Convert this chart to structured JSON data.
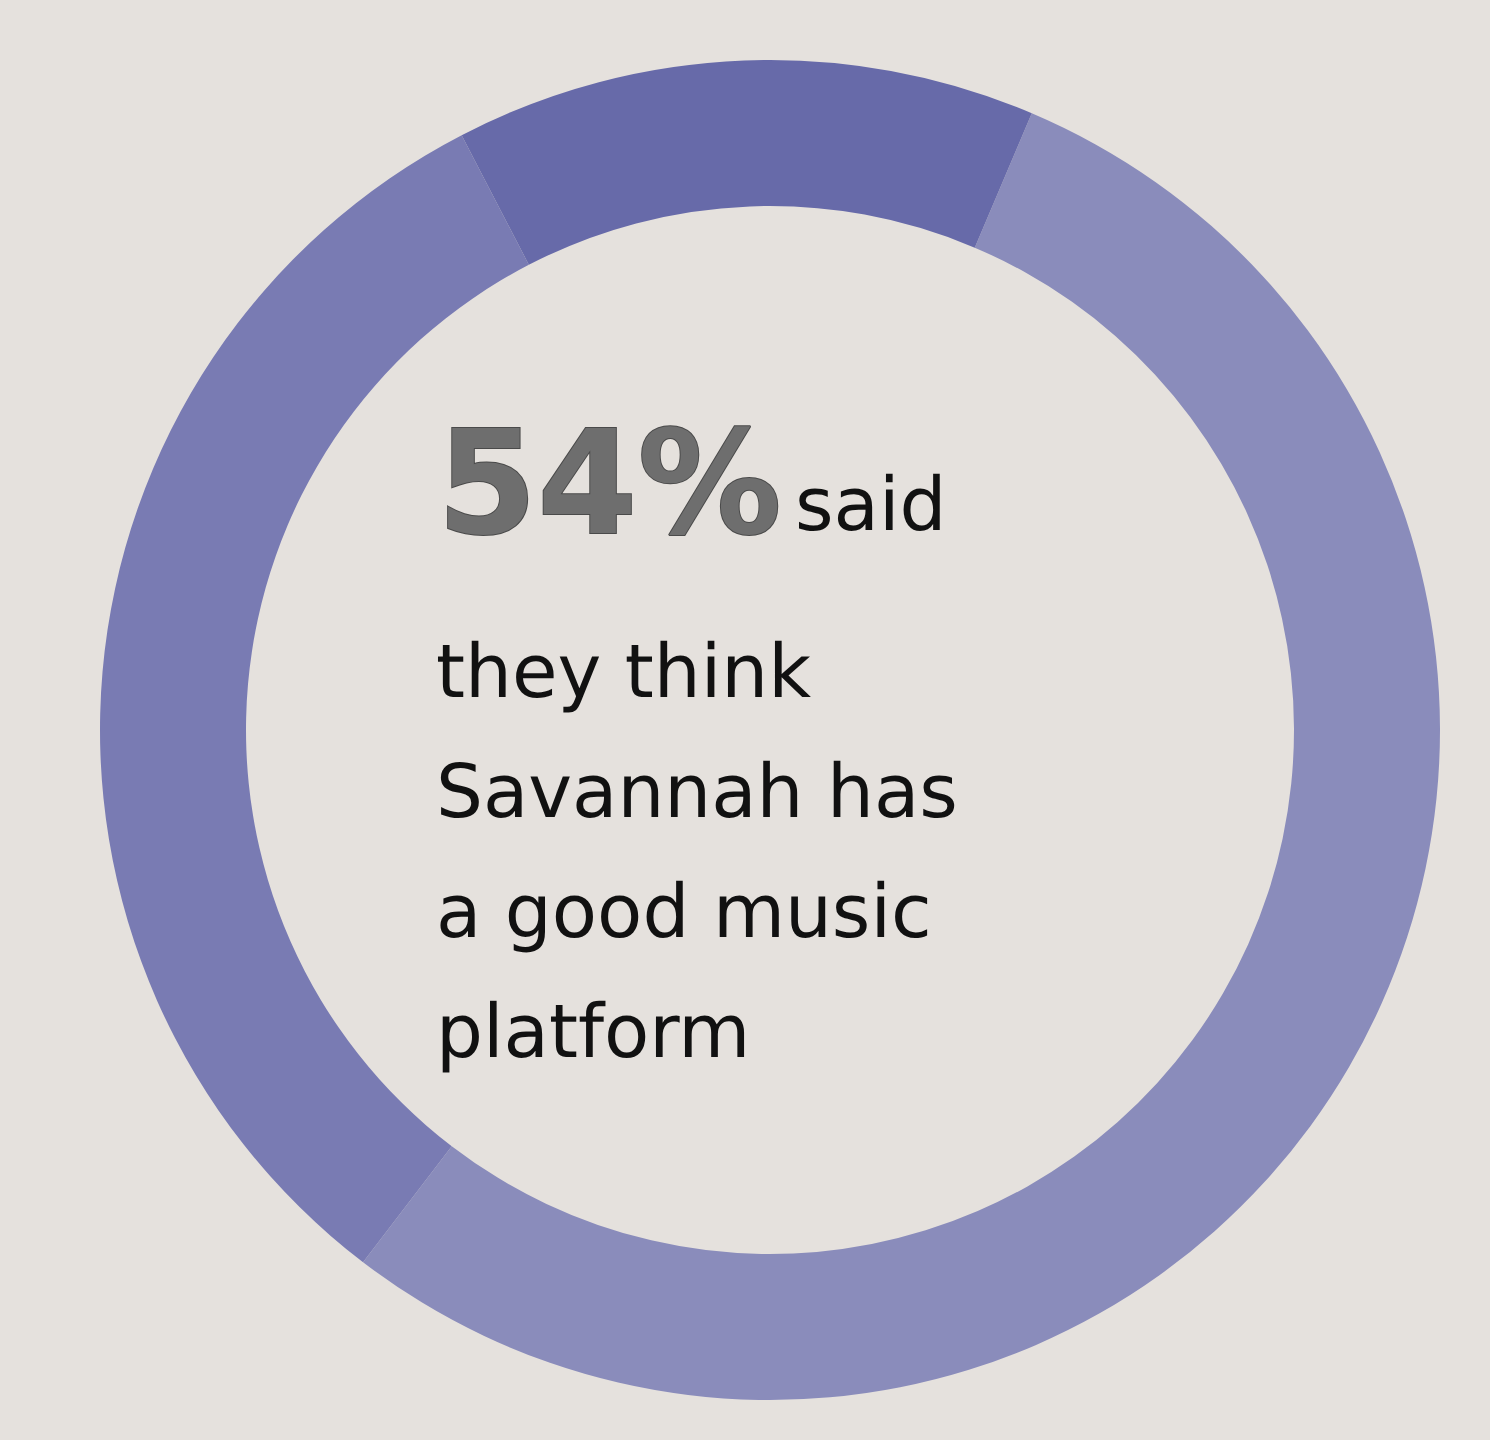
{
  "chart_data": {
    "type": "donut",
    "categories": [
      null,
      null,
      null
    ],
    "values": [
      54,
      32,
      14
    ],
    "colors": [
      "#8a8cbb",
      "#797bb3",
      "#676aa9"
    ],
    "annotations": [
      "54%",
      "said",
      "they think\nSavannah has\na good music\nplatform"
    ]
  }
}
